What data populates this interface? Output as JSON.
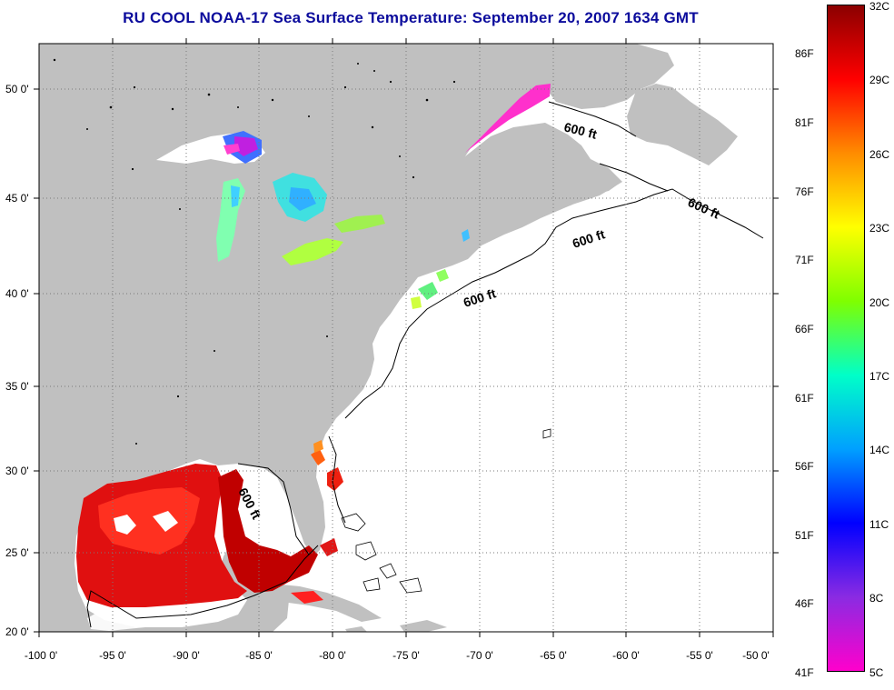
{
  "title": "RU COOL  NOAA-17  Sea Surface Temperature:  September 20, 2007 1634 GMT",
  "colors": {
    "title": "#0b0b9c",
    "land": "#c0c0c0",
    "sea": "#ffffff",
    "grid": "#7a7a7a"
  },
  "axes": {
    "longitude_labels": [
      "-100 0'",
      "-95 0'",
      "-90 0'",
      "-85 0'",
      "-80 0'",
      "-75 0'",
      "-70 0'",
      "-65 0'",
      "-60 0'",
      "-55 0'",
      "-50 0'"
    ],
    "latitude_labels": [
      "50 0'",
      "45 0'",
      "40 0'",
      "35 0'",
      "30 0'",
      "25 0'",
      "20 0'"
    ]
  },
  "map_annotations": {
    "isobath_label": "600 ft",
    "isobath_count": 5
  },
  "colorbar": {
    "fahrenheit_labels": [
      "86F",
      "81F",
      "76F",
      "71F",
      "66F",
      "61F",
      "56F",
      "51F",
      "46F",
      "41F"
    ],
    "celsius_labels": [
      "32C",
      "29C",
      "26C",
      "23C",
      "20C",
      "17C",
      "14C",
      "11C",
      "8C",
      "5C"
    ],
    "range_c": [
      5,
      32
    ],
    "gradient_top_to_bottom": [
      "#8b0000",
      "#ff0000",
      "#ff8c00",
      "#ffff00",
      "#7fff00",
      "#00ffc8",
      "#00a0ff",
      "#0000ff",
      "#8a2be2",
      "#ff00cc"
    ]
  }
}
